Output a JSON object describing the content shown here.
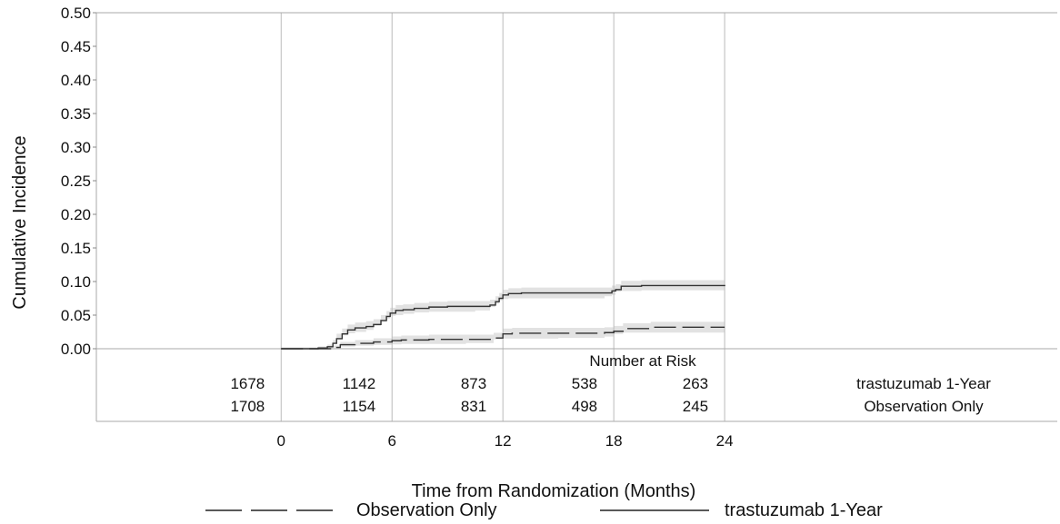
{
  "chart_data": {
    "type": "line",
    "xlabel": "Time from Randomization (Months)",
    "ylabel": "Cumulative Incidence",
    "xlim": [
      -10,
      42
    ],
    "ylim": [
      0,
      0.5
    ],
    "x_ticks": [
      0,
      6,
      12,
      18,
      24
    ],
    "y_ticks": [
      "0.00",
      "0.05",
      "0.10",
      "0.15",
      "0.20",
      "0.25",
      "0.30",
      "0.35",
      "0.40",
      "0.45",
      "0.50"
    ],
    "grid": "vertical",
    "series": [
      {
        "name": "trastuzumab 1-Year",
        "style": "solid",
        "color": "#333333",
        "x": [
          0,
          1,
          2,
          2.5,
          2.8,
          3.0,
          3.3,
          3.6,
          4.0,
          4.6,
          5.0,
          5.4,
          5.7,
          5.9,
          6.2,
          6.6,
          7.2,
          8.0,
          9.0,
          10.5,
          11.3,
          11.6,
          11.8,
          12.0,
          12.3,
          13.0,
          15.0,
          17.5,
          17.9,
          18.1,
          18.4,
          19.5,
          24
        ],
        "y": [
          0,
          0,
          0.001,
          0.003,
          0.008,
          0.015,
          0.022,
          0.028,
          0.031,
          0.033,
          0.036,
          0.042,
          0.048,
          0.053,
          0.057,
          0.058,
          0.06,
          0.062,
          0.063,
          0.063,
          0.065,
          0.07,
          0.075,
          0.08,
          0.082,
          0.083,
          0.083,
          0.083,
          0.086,
          0.088,
          0.093,
          0.094,
          0.095
        ]
      },
      {
        "name": "Observation Only",
        "style": "dashed",
        "color": "#333333",
        "x": [
          0,
          2,
          2.8,
          3.2,
          4.0,
          5.0,
          6.0,
          6.5,
          8.0,
          10.0,
          11.5,
          12.0,
          12.5,
          15.0,
          17.5,
          18.0,
          18.5,
          20.0,
          24
        ],
        "y": [
          0,
          0,
          0.002,
          0.006,
          0.008,
          0.01,
          0.012,
          0.013,
          0.014,
          0.014,
          0.016,
          0.022,
          0.023,
          0.023,
          0.024,
          0.026,
          0.03,
          0.032,
          0.032
        ]
      }
    ],
    "risk_table": {
      "title": "Number at Risk",
      "times": [
        0,
        6,
        12,
        18,
        24
      ],
      "rows": [
        {
          "label": "trastuzumab 1-Year",
          "values": [
            "1678",
            "1142",
            "873",
            "538",
            "263"
          ]
        },
        {
          "label": "Observation Only",
          "values": [
            "1708",
            "1154",
            "831",
            "498",
            "245"
          ]
        }
      ]
    },
    "legend": {
      "position": "bottom",
      "entries": [
        {
          "label": "Observation Only",
          "style": "dashed"
        },
        {
          "label": "trastuzumab 1-Year",
          "style": "solid"
        }
      ]
    }
  }
}
